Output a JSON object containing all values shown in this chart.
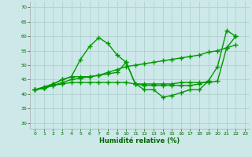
{
  "x": [
    0,
    1,
    2,
    3,
    4,
    5,
    6,
    7,
    8,
    9,
    10,
    11,
    12,
    13,
    14,
    15,
    16,
    17,
    18,
    19,
    20,
    21,
    22,
    23
  ],
  "line_spike": [
    41.5,
    42.5,
    43.5,
    45,
    46,
    52,
    56.5,
    59.5,
    57.5,
    53.5,
    51,
    43.5,
    41.5,
    41.5,
    39,
    39.5,
    40.5,
    41.5,
    41.5,
    44.5,
    49.5,
    62,
    60,
    null
  ],
  "line_flat_upper": [
    41.5,
    42,
    43.5,
    45,
    46,
    46,
    46,
    46.5,
    47,
    47.5,
    51,
    43.5,
    43.5,
    43.5,
    43.5,
    43.5,
    44,
    44,
    44,
    44,
    44.5,
    56,
    60,
    null
  ],
  "line_trend": [
    41.5,
    42,
    43,
    44,
    45,
    45.5,
    46,
    46.5,
    47.5,
    48.5,
    49.5,
    50,
    50.5,
    51,
    51.5,
    52,
    52.5,
    53,
    53.5,
    54.5,
    55,
    56,
    57,
    null
  ],
  "line_flat_lower": [
    41.5,
    42,
    43,
    43.5,
    44,
    44,
    44,
    44,
    44,
    44,
    44,
    43.5,
    43,
    43,
    43,
    43,
    43,
    43,
    43.5,
    44.5,
    null,
    null,
    null,
    null
  ],
  "bg_color": "#cce8e8",
  "grid_color": "#aacccc",
  "line_color": "#009900",
  "xlabel": "Humidité relative (%)",
  "ylim": [
    28,
    72
  ],
  "xlim": [
    -0.5,
    23.5
  ],
  "yticks": [
    30,
    35,
    40,
    45,
    50,
    55,
    60,
    65,
    70
  ],
  "xticks": [
    0,
    1,
    2,
    3,
    4,
    5,
    6,
    7,
    8,
    9,
    10,
    11,
    12,
    13,
    14,
    15,
    16,
    17,
    18,
    19,
    20,
    21,
    22,
    23
  ],
  "marker": "+",
  "markersize": 4,
  "linewidth": 1.0
}
